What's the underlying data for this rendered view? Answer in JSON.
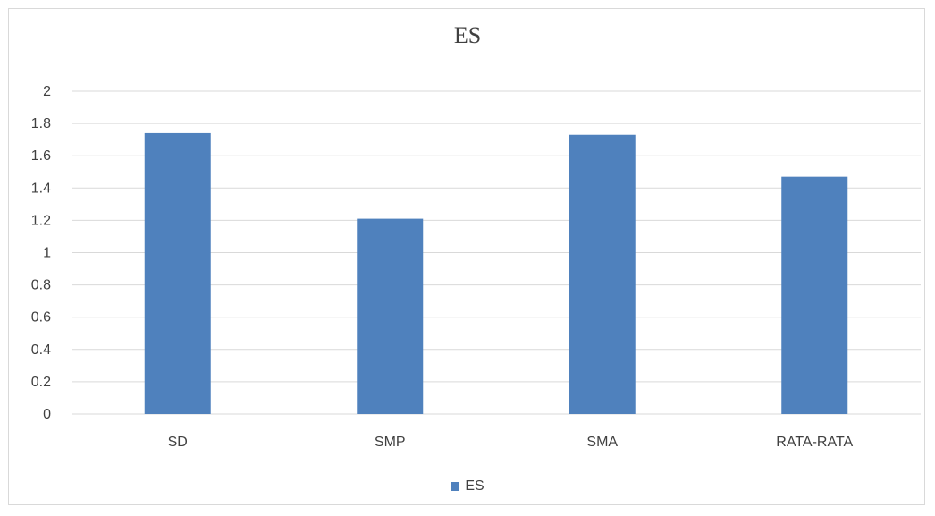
{
  "chart_data": {
    "type": "bar",
    "title": "ES",
    "categories": [
      "SD",
      "SMP",
      "SMA",
      "RATA-RATA"
    ],
    "series": [
      {
        "name": "ES",
        "values": [
          1.74,
          1.21,
          1.73,
          1.47
        ]
      }
    ],
    "ylim": [
      0,
      2
    ],
    "y_ticks": [
      "0",
      "0.2",
      "0.4",
      "0.6",
      "0.8",
      "1",
      "1.2",
      "1.4",
      "1.6",
      "1.8",
      "2"
    ],
    "grid": true,
    "legend_position": "bottom",
    "colors": {
      "bar": "#4f81bd",
      "grid": "#d9d9d9",
      "text": "#404040"
    }
  }
}
